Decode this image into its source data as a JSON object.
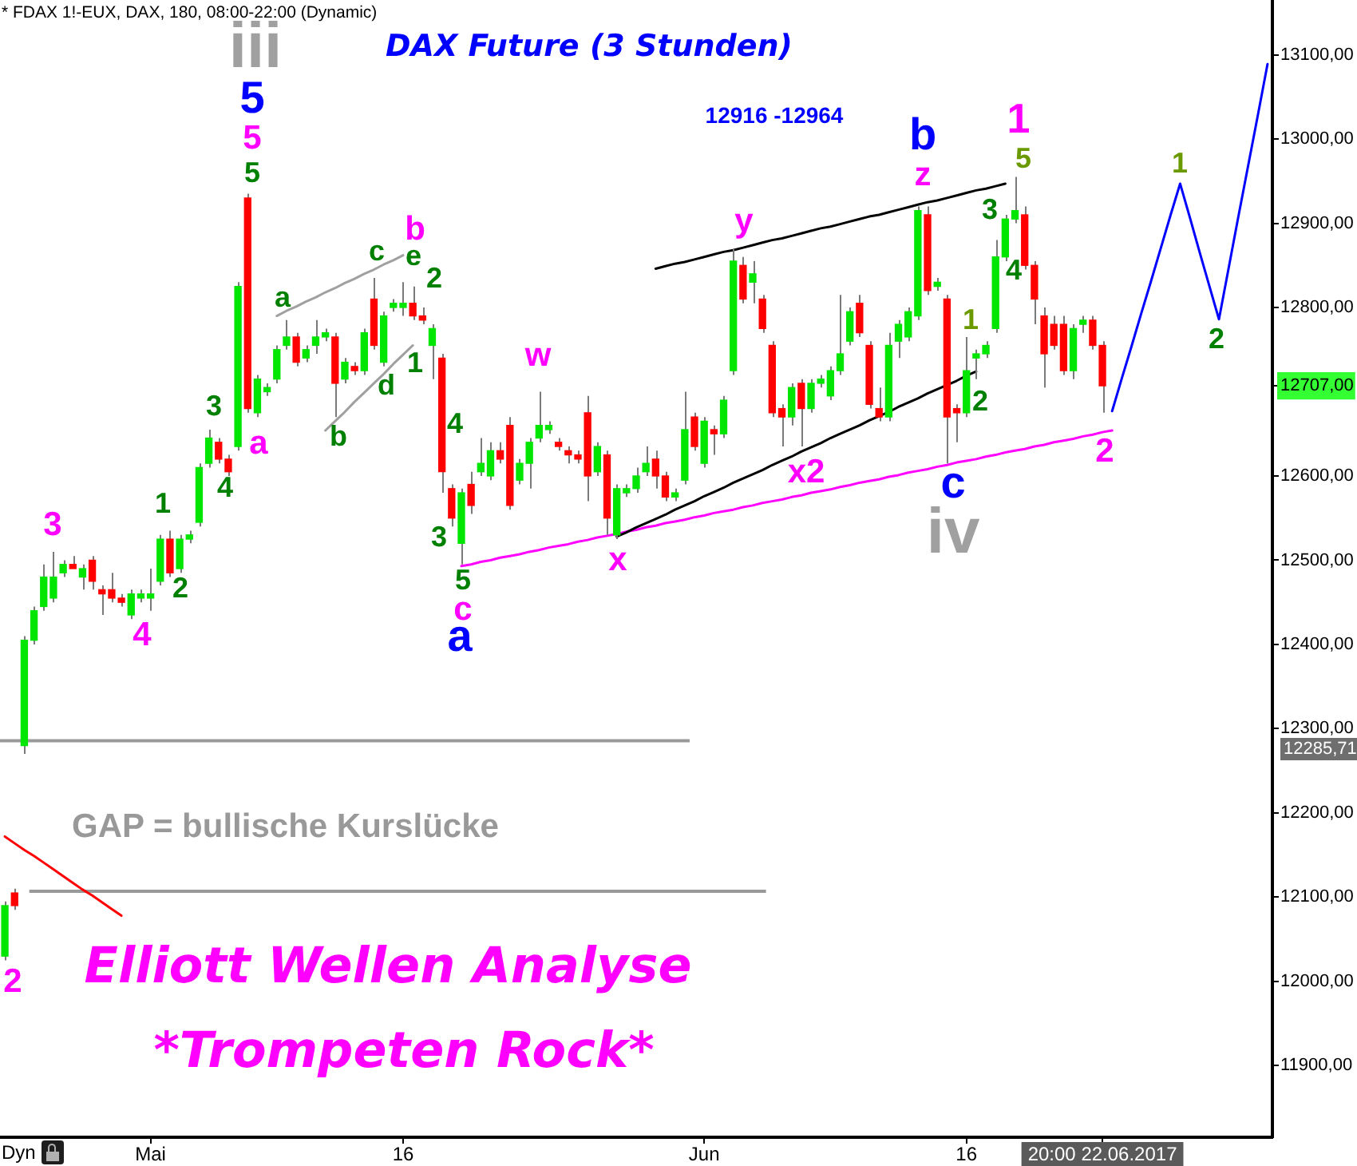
{
  "chart_data": {
    "type": "candlestick",
    "title": "DAX Future (3 Stunden)",
    "subtitle": "* FDAX 1!-EUX, DAX, 180, 08:00-22:00 (Dynamic)",
    "annotations": [
      "12916 -12964",
      "GAP = bullische Kurslücke",
      "Elliott Wellen Analyse",
      "*Trompeten Rock*",
      "Dyn",
      "iii",
      "5",
      "5",
      "5",
      "3",
      "4",
      "1",
      "2",
      "3",
      "4",
      "a",
      "a",
      "b",
      "c",
      "e",
      "b",
      "d",
      "2",
      "1",
      "4",
      "3",
      "5",
      "c",
      "a",
      "w",
      "x",
      "y",
      "x2",
      "b",
      "z",
      "c",
      "iv",
      "1",
      "5",
      "3",
      "4",
      "1",
      "2",
      "2",
      "1",
      "2",
      "2",
      "12285,71"
    ],
    "categories": [
      null,
      null,
      null,
      null,
      null,
      null,
      null,
      null,
      null,
      null,
      null,
      null,
      null,
      null,
      null,
      "Mai",
      null,
      null,
      null,
      null,
      null,
      null,
      null,
      null,
      null,
      null,
      null,
      null,
      null,
      null,
      null,
      null,
      null,
      null,
      null,
      null,
      null,
      null,
      null,
      null,
      null,
      "16",
      null,
      null,
      null,
      null,
      null,
      null,
      null,
      null,
      null,
      null,
      null,
      null,
      null,
      null,
      null,
      null,
      null,
      null,
      null,
      null,
      null,
      null,
      null,
      null,
      null,
      null,
      null,
      null,
      null,
      null,
      "Jun",
      null,
      null,
      null,
      null,
      null,
      null,
      null,
      null,
      null,
      null,
      null,
      null,
      null,
      null,
      null,
      null,
      null,
      null,
      null,
      null,
      null,
      null,
      null,
      null,
      null,
      null,
      "16",
      null,
      null,
      null,
      null,
      null,
      null,
      null,
      null,
      null,
      null,
      null,
      null,
      null,
      "20:00 22.06.2017",
      null,
      null,
      null,
      null,
      null,
      null,
      null,
      null,
      null,
      null,
      null,
      null,
      null,
      null,
      null,
      null,
      null
    ],
    "ohlc": [
      [
        12030,
        12095,
        12025,
        12090
      ],
      [
        12105,
        12110,
        12085,
        12090
      ],
      [
        12280,
        12410,
        12270,
        12405
      ],
      [
        12405,
        12445,
        12400,
        12440
      ],
      [
        12445,
        12495,
        12440,
        12480
      ],
      [
        12455,
        12510,
        12450,
        12480
      ],
      [
        12485,
        12500,
        12480,
        12495
      ],
      [
        12495,
        12505,
        12490,
        12490
      ],
      [
        12480,
        12495,
        12465,
        12490
      ],
      [
        12500,
        12505,
        12465,
        12475
      ],
      [
        12465,
        12470,
        12435,
        12460
      ],
      [
        12465,
        12485,
        12450,
        12455
      ],
      [
        12455,
        12460,
        12445,
        12450
      ],
      [
        12435,
        12465,
        12430,
        12460
      ],
      [
        12455,
        12465,
        12450,
        12460
      ],
      [
        12455,
        12490,
        12440,
        12460
      ],
      [
        12475,
        12530,
        12470,
        12525
      ],
      [
        12525,
        12535,
        12480,
        12485
      ],
      [
        12490,
        12530,
        12485,
        12525
      ],
      [
        12525,
        12535,
        12520,
        12530
      ],
      [
        12545,
        12615,
        12540,
        12610
      ],
      [
        12615,
        12655,
        12610,
        12645
      ],
      [
        12640,
        12645,
        12615,
        12620
      ],
      [
        12620,
        12625,
        12600,
        12605
      ],
      [
        12635,
        12830,
        12630,
        12825
      ],
      [
        12930,
        12935,
        12675,
        12680
      ],
      [
        12675,
        12720,
        12670,
        12715
      ],
      [
        12700,
        12710,
        12695,
        12705
      ],
      [
        12715,
        12755,
        12710,
        12750
      ],
      [
        12755,
        12785,
        12750,
        12765
      ],
      [
        12765,
        12770,
        12730,
        12735
      ],
      [
        12740,
        12755,
        12735,
        12750
      ],
      [
        12755,
        12785,
        12745,
        12765
      ],
      [
        12765,
        12775,
        12760,
        12770
      ],
      [
        12765,
        12770,
        12670,
        12710
      ],
      [
        12715,
        12740,
        12710,
        12735
      ],
      [
        12730,
        12735,
        12720,
        12725
      ],
      [
        12725,
        12775,
        12720,
        12770
      ],
      [
        12810,
        12835,
        12750,
        12755
      ],
      [
        12735,
        12795,
        12730,
        12790
      ],
      [
        12800,
        12810,
        12795,
        12805
      ],
      [
        12800,
        12830,
        12790,
        12805
      ],
      [
        12805,
        12825,
        12785,
        12790
      ],
      [
        12790,
        12800,
        12780,
        12785
      ],
      [
        12755,
        12780,
        12715,
        12775
      ],
      [
        12740,
        12745,
        12580,
        12605
      ],
      [
        12585,
        12590,
        12540,
        12550
      ],
      [
        12520,
        12585,
        12495,
        12580
      ],
      [
        12590,
        12605,
        12555,
        12565
      ],
      [
        12605,
        12645,
        12600,
        12615
      ],
      [
        12600,
        12640,
        12595,
        12630
      ],
      [
        12630,
        12640,
        12615,
        12620
      ],
      [
        12660,
        12670,
        12560,
        12565
      ],
      [
        12595,
        12620,
        12590,
        12615
      ],
      [
        12615,
        12645,
        12585,
        12640
      ],
      [
        12645,
        12700,
        12640,
        12660
      ],
      [
        12655,
        12665,
        12650,
        12660
      ],
      [
        12640,
        12645,
        12630,
        12635
      ],
      [
        12630,
        12635,
        12615,
        12625
      ],
      [
        12625,
        12630,
        12615,
        12620
      ],
      [
        12675,
        12695,
        12570,
        12600
      ],
      [
        12605,
        12640,
        12600,
        12635
      ],
      [
        12625,
        12630,
        12530,
        12550
      ],
      [
        12530,
        12590,
        12525,
        12585
      ],
      [
        12580,
        12590,
        12575,
        12585
      ],
      [
        12585,
        12610,
        12580,
        12600
      ],
      [
        12605,
        12635,
        12600,
        12615
      ],
      [
        12620,
        12630,
        12585,
        12600
      ],
      [
        12600,
        12605,
        12570,
        12575
      ],
      [
        12575,
        12585,
        12570,
        12580
      ],
      [
        12595,
        12700,
        12590,
        12655
      ],
      [
        12670,
        12675,
        12630,
        12635
      ],
      [
        12615,
        12670,
        12610,
        12665
      ],
      [
        12655,
        12660,
        12625,
        12650
      ],
      [
        12650,
        12695,
        12645,
        12690
      ],
      [
        12725,
        12870,
        12720,
        12855
      ],
      [
        12850,
        12860,
        12805,
        12810
      ],
      [
        12830,
        12855,
        12805,
        12840
      ],
      [
        12810,
        12815,
        12770,
        12775
      ],
      [
        12755,
        12760,
        12670,
        12675
      ],
      [
        12680,
        12685,
        12635,
        12670
      ],
      [
        12670,
        12710,
        12660,
        12705
      ],
      [
        12710,
        12715,
        12635,
        12680
      ],
      [
        12680,
        12715,
        12675,
        12710
      ],
      [
        12710,
        12720,
        12705,
        12715
      ],
      [
        12695,
        12730,
        12690,
        12725
      ],
      [
        12725,
        12815,
        12720,
        12745
      ],
      [
        12760,
        12800,
        12755,
        12795
      ],
      [
        12805,
        12815,
        12765,
        12770
      ],
      [
        12755,
        12760,
        12680,
        12685
      ],
      [
        12680,
        12705,
        12665,
        12670
      ],
      [
        12670,
        12770,
        12665,
        12755
      ],
      [
        12760,
        12785,
        12740,
        12780
      ],
      [
        12765,
        12800,
        12760,
        12795
      ],
      [
        12790,
        12920,
        12785,
        12915
      ],
      [
        12910,
        12920,
        12815,
        12820
      ],
      [
        12825,
        12835,
        12820,
        12830
      ],
      [
        12810,
        12815,
        12615,
        12670
      ],
      [
        12680,
        12685,
        12640,
        12675
      ],
      [
        12675,
        12765,
        12670,
        12725
      ],
      [
        12740,
        12750,
        12715,
        12745
      ],
      [
        12745,
        12760,
        12740,
        12755
      ],
      [
        12775,
        12880,
        12770,
        12860
      ],
      [
        12860,
        12910,
        12855,
        12905
      ],
      [
        12905,
        12955,
        12900,
        12915
      ],
      [
        12910,
        12920,
        12845,
        12850
      ],
      [
        12850,
        12855,
        12780,
        12810
      ],
      [
        12790,
        12800,
        12705,
        12745
      ],
      [
        12780,
        12790,
        12750,
        12755
      ],
      [
        12780,
        12790,
        12720,
        12725
      ],
      [
        12725,
        12780,
        12715,
        12775
      ],
      [
        12780,
        12790,
        12770,
        12785
      ],
      [
        12785,
        12790,
        12750,
        12755
      ],
      [
        12755,
        12760,
        12675,
        12707
      ],
      null,
      null,
      null,
      null,
      null,
      null,
      null,
      null,
      null,
      null,
      null,
      null,
      null,
      null,
      null,
      null,
      null
    ],
    "colors": [
      "#00e600",
      "#ff0000",
      "#00e600",
      "#00e600",
      "#00e600",
      "#00e600",
      "#00e600",
      "#ff0000",
      "#00e600",
      "#ff0000",
      "#ff0000",
      "#ff0000",
      "#ff0000",
      "#00e600",
      "#00e600",
      "#00e600",
      "#00e600",
      "#ff0000",
      "#00e600",
      "#00e600",
      "#00e600",
      "#00e600",
      "#ff0000",
      "#ff0000",
      "#00e600",
      "#ff0000",
      "#00e600",
      "#00e600",
      "#00e600",
      "#00e600",
      "#ff0000",
      "#00e600",
      "#00e600",
      "#00e600",
      "#ff0000",
      "#00e600",
      "#ff0000",
      "#00e600",
      "#ff0000",
      "#00e600",
      "#00e600",
      "#00e600",
      "#ff0000",
      "#ff0000",
      "#00e600",
      "#ff0000",
      "#ff0000",
      "#00e600",
      "#ff0000",
      "#00e600",
      "#00e600",
      "#ff0000",
      "#ff0000",
      "#00e600",
      "#00e600",
      "#00e600",
      "#00e600",
      "#ff0000",
      "#ff0000",
      "#ff0000",
      "#ff0000",
      "#00e600",
      "#ff0000",
      "#00e600",
      "#00e600",
      "#00e600",
      "#00e600",
      "#ff0000",
      "#ff0000",
      "#00e600",
      "#00e600",
      "#ff0000",
      "#00e600",
      "#ff0000",
      "#00e600",
      "#00e600",
      "#ff0000",
      "#00e600",
      "#ff0000",
      "#ff0000",
      "#ff0000",
      "#00e600",
      "#ff0000",
      "#00e600",
      "#00e600",
      "#00e600",
      "#00e600",
      "#00e600",
      "#ff0000",
      "#ff0000",
      "#ff0000",
      "#00e600",
      "#00e600",
      "#00e600",
      "#00e600",
      "#ff0000",
      "#00e600",
      "#ff0000",
      "#ff0000",
      "#00e600",
      "#00e600",
      "#00e600",
      "#00e600",
      "#00e600",
      "#00e600",
      "#ff0000",
      "#ff0000",
      "#ff0000",
      "#ff0000",
      "#ff0000",
      "#00e600",
      "#00e600",
      "#ff0000",
      "#ff0000",
      null,
      null,
      null,
      null,
      null,
      null,
      null,
      null,
      null,
      null,
      null,
      null,
      null,
      null,
      null,
      null,
      null
    ],
    "series": [
      {
        "type": "line",
        "color": "#a0a0a0",
        "values": [
          null,
          null,
          null,
          null,
          null,
          null,
          null,
          null,
          null,
          null,
          null,
          null,
          null,
          null,
          null,
          null,
          null,
          null,
          null,
          null,
          null,
          null,
          null,
          null,
          null,
          null,
          null,
          null,
          12790,
          12796,
          12801,
          12807,
          12812,
          12818,
          12823,
          12829,
          12834,
          12840,
          12845,
          12851,
          12856,
          12862,
          null,
          null,
          null,
          null,
          null,
          null,
          null,
          null,
          null,
          null,
          null,
          null,
          null,
          null,
          null,
          null,
          null,
          null,
          null,
          null,
          null,
          null,
          null,
          null,
          null,
          null,
          null,
          null,
          null,
          null,
          null,
          null,
          null,
          null,
          null,
          null,
          null,
          null,
          null,
          null,
          null,
          null,
          null,
          null,
          null,
          null,
          null,
          null,
          null,
          null,
          null,
          null,
          null,
          null,
          null,
          null,
          null,
          null,
          null,
          null,
          null,
          null,
          null,
          null,
          null,
          null,
          null,
          null,
          null,
          null,
          null,
          null,
          null,
          null,
          null,
          null,
          null,
          null,
          null,
          null,
          null,
          null,
          null,
          null,
          null,
          null,
          null,
          null,
          null
        ]
      },
      {
        "type": "line",
        "color": "#a0a0a0",
        "values": [
          null,
          null,
          null,
          null,
          null,
          null,
          null,
          null,
          null,
          null,
          null,
          null,
          null,
          null,
          null,
          null,
          null,
          null,
          null,
          null,
          null,
          null,
          null,
          null,
          null,
          null,
          null,
          null,
          null,
          null,
          null,
          null,
          null,
          12654,
          12665,
          12676,
          12688,
          12699,
          12710,
          12721,
          12733,
          12744,
          12755,
          null,
          null,
          null,
          null,
          null,
          null,
          null,
          null,
          null,
          null,
          null,
          null,
          null,
          null,
          null,
          null,
          null,
          null,
          null,
          null,
          null,
          null,
          null,
          null,
          null,
          null,
          null,
          null,
          null,
          null,
          null,
          null,
          null,
          null,
          null,
          null,
          null,
          null,
          null,
          null,
          null,
          null,
          null,
          null,
          null,
          null,
          null,
          null,
          null,
          null,
          null,
          null,
          null,
          null,
          null,
          null,
          null,
          null,
          null,
          null,
          null,
          null,
          null,
          null,
          null,
          null,
          null,
          null,
          null,
          null,
          null,
          null,
          null,
          null,
          null,
          null,
          null,
          null,
          null,
          null,
          null,
          null,
          null,
          null,
          null,
          null,
          null,
          null
        ]
      },
      {
        "type": "line",
        "color": "#000000",
        "values": [
          null,
          null,
          null,
          null,
          null,
          null,
          null,
          null,
          null,
          null,
          null,
          null,
          null,
          null,
          null,
          null,
          null,
          null,
          null,
          null,
          null,
          null,
          null,
          null,
          null,
          null,
          null,
          null,
          null,
          null,
          null,
          null,
          null,
          null,
          null,
          null,
          null,
          null,
          null,
          null,
          null,
          null,
          null,
          null,
          null,
          null,
          null,
          null,
          null,
          null,
          null,
          null,
          null,
          null,
          null,
          null,
          null,
          null,
          null,
          null,
          null,
          null,
          null,
          null,
          null,
          null,
          null,
          12846,
          12849,
          12852,
          12854,
          12857,
          12860,
          12863,
          12866,
          12868,
          12871,
          12874,
          12877,
          12880,
          12882,
          12885,
          12888,
          12891,
          12894,
          12896,
          12899,
          12902,
          12905,
          12908,
          12910,
          12913,
          12916,
          12919,
          12922,
          12925,
          12927,
          12930,
          12933,
          12936,
          12939,
          12941,
          12944,
          12947,
          null,
          null,
          null,
          null,
          null,
          null,
          null,
          null,
          null,
          null,
          null,
          null,
          null,
          null,
          null,
          null,
          null,
          null,
          null,
          null,
          null,
          null,
          null,
          null,
          null,
          null,
          null
        ]
      },
      {
        "type": "line",
        "color": "#000000",
        "values": [
          null,
          null,
          null,
          null,
          null,
          null,
          null,
          null,
          null,
          null,
          null,
          null,
          null,
          null,
          null,
          null,
          null,
          null,
          null,
          null,
          null,
          null,
          null,
          null,
          null,
          null,
          null,
          null,
          null,
          null,
          null,
          null,
          null,
          null,
          null,
          null,
          null,
          null,
          null,
          null,
          null,
          null,
          null,
          null,
          null,
          null,
          null,
          null,
          null,
          null,
          null,
          null,
          null,
          null,
          null,
          null,
          null,
          null,
          null,
          null,
          null,
          null,
          null,
          12528,
          12533,
          12539,
          12544,
          12549,
          12554,
          12560,
          12565,
          12570,
          12576,
          12581,
          12586,
          12592,
          12597,
          12602,
          12607,
          12613,
          12618,
          12623,
          12629,
          12634,
          12639,
          12645,
          12650,
          12655,
          12660,
          12666,
          12671,
          12676,
          12682,
          12687,
          12692,
          12698,
          12703,
          12708,
          12713,
          12719,
          12724,
          null,
          null,
          null,
          null,
          null,
          null,
          null,
          null,
          null,
          null,
          null,
          null,
          null,
          null,
          null,
          null,
          null,
          null,
          null,
          null,
          null,
          null,
          null,
          null,
          null,
          null,
          null,
          null,
          null,
          null
        ]
      },
      {
        "type": "line",
        "color": "#ff00ff",
        "values": [
          null,
          null,
          null,
          null,
          null,
          null,
          null,
          null,
          null,
          null,
          null,
          null,
          null,
          null,
          null,
          null,
          null,
          null,
          null,
          null,
          null,
          null,
          null,
          null,
          null,
          null,
          null,
          null,
          null,
          null,
          null,
          null,
          null,
          null,
          null,
          null,
          null,
          null,
          null,
          null,
          null,
          null,
          null,
          null,
          null,
          null,
          null,
          12493,
          12495,
          12498,
          12500,
          12503,
          12505,
          12507,
          12510,
          12512,
          12515,
          12517,
          12519,
          12522,
          12524,
          12527,
          12529,
          12531,
          12534,
          12536,
          12539,
          12541,
          12544,
          12546,
          12548,
          12551,
          12553,
          12556,
          12558,
          12560,
          12563,
          12565,
          12568,
          12570,
          12572,
          12575,
          12577,
          12580,
          12582,
          12584,
          12587,
          12589,
          12592,
          12594,
          12596,
          12599,
          12601,
          12604,
          12606,
          12608,
          12611,
          12613,
          12616,
          12618,
          12620,
          12623,
          12625,
          12628,
          12630,
          12632,
          12635,
          12637,
          12640,
          12642,
          12644,
          12647,
          12649,
          12652,
          12654,
          null,
          null,
          null,
          null,
          null,
          null,
          null,
          null,
          null,
          null,
          null,
          null,
          null,
          null,
          null,
          null
        ]
      },
      {
        "type": "line",
        "color": "#ff0000",
        "values": [
          12172,
          12164,
          12156,
          12149,
          12141,
          12133,
          12125,
          12117,
          12109,
          12102,
          12094,
          12086,
          12078,
          null,
          null,
          null,
          null,
          null,
          null,
          null,
          null,
          null,
          null,
          null,
          null,
          null,
          null,
          null,
          null,
          null,
          null,
          null,
          null,
          null,
          null,
          null,
          null,
          null,
          null,
          null,
          null,
          null,
          null,
          null,
          null,
          null,
          null,
          null,
          null,
          null,
          null,
          null,
          null,
          null,
          null,
          null,
          null,
          null,
          null,
          null,
          null,
          null,
          null,
          null,
          null,
          null,
          null,
          null,
          null,
          null,
          null,
          null,
          null,
          null,
          null,
          null,
          null,
          null,
          null,
          null,
          null,
          null,
          null,
          null,
          null,
          null,
          null,
          null,
          null,
          null,
          null,
          null,
          null,
          null,
          null,
          null,
          null,
          null,
          null,
          null,
          null,
          null,
          null,
          null,
          null,
          null,
          null,
          null,
          null,
          null,
          null,
          null,
          null,
          null,
          null,
          null,
          null,
          null,
          null,
          null,
          null,
          null,
          null,
          null,
          null,
          null,
          null,
          null,
          null,
          null,
          null
        ]
      },
      {
        "type": "line",
        "color": "#0000ff",
        "values": [
          null,
          null,
          null,
          null,
          null,
          null,
          null,
          null,
          null,
          null,
          null,
          null,
          null,
          null,
          null,
          null,
          null,
          null,
          null,
          null,
          null,
          null,
          null,
          null,
          null,
          null,
          null,
          null,
          null,
          null,
          null,
          null,
          null,
          null,
          null,
          null,
          null,
          null,
          null,
          null,
          null,
          null,
          null,
          null,
          null,
          null,
          null,
          null,
          null,
          null,
          null,
          null,
          null,
          null,
          null,
          null,
          null,
          null,
          null,
          null,
          null,
          null,
          null,
          null,
          null,
          null,
          null,
          null,
          null,
          null,
          null,
          null,
          null,
          null,
          null,
          null,
          null,
          null,
          null,
          null,
          null,
          null,
          null,
          null,
          null,
          null,
          null,
          null,
          null,
          null,
          null,
          null,
          null,
          null,
          null,
          null,
          null,
          null,
          null,
          null,
          null,
          null,
          null,
          null,
          null,
          null,
          null,
          null,
          null,
          null,
          null,
          null,
          null,
          null,
          12677,
          12716,
          12754,
          12793,
          12831,
          12870,
          12909,
          12947,
          12907,
          12866,
          12826,
          12786,
          12847,
          12908,
          12968,
          13028,
          13089
        ]
      }
    ],
    "ref_lines": [
      {
        "axis": "y",
        "value": 12285.71,
        "color": "#999999"
      },
      {
        "axis": "y",
        "value": 12107,
        "color": "#999999"
      }
    ],
    "ylim": [
      11815,
      13165
    ],
    "yticks": [
      {
        "value": 11900,
        "label": "11900,00"
      },
      {
        "value": 12000,
        "label": "12000,00"
      },
      {
        "value": 12100,
        "label": "12100,00"
      },
      {
        "value": 12200,
        "label": "12200,00"
      },
      {
        "value": 12300,
        "label": "12300,00"
      },
      {
        "value": 12400,
        "label": "12400,00"
      },
      {
        "value": 12500,
        "label": "12500,00"
      },
      {
        "value": 12600,
        "label": "12600,00"
      },
      {
        "value": 12707,
        "label": "12707,00"
      },
      {
        "value": 12800,
        "label": "12800,00"
      },
      {
        "value": 12900,
        "label": "12900,00"
      },
      {
        "value": 13000,
        "label": "13000,00"
      },
      {
        "value": 13100,
        "label": "13100,00"
      }
    ]
  }
}
